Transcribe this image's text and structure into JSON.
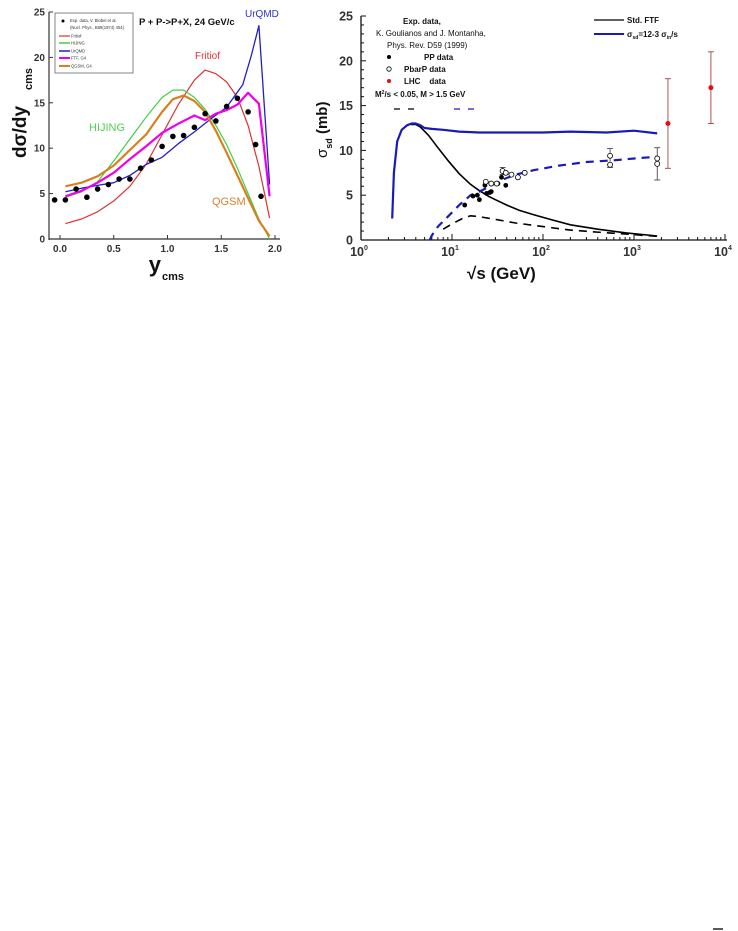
{
  "chart_data": [
    {
      "type": "line",
      "title": "P + P->P+X, 24 GeV/c",
      "xlabel": "y",
      "xlabel_sub": "cms",
      "ylabel": "dσ/dy",
      "ylabel_sub": "cms",
      "xlim": [
        -0.1,
        2.0
      ],
      "ylim": [
        0,
        25
      ],
      "xticks": [
        0.0,
        0.5,
        1.0,
        1.5,
        2.0
      ],
      "xtick_labels": [
        "0.0",
        "0.5",
        "1.0",
        "1.5",
        "2.0"
      ],
      "yticks": [
        0,
        5,
        10,
        15,
        20,
        25
      ],
      "ytick_labels": [
        "0",
        "5",
        "10",
        "15",
        "20",
        "25"
      ],
      "legend_position": "top-left",
      "legend": [
        "Exp. data, V. Blobel et al.",
        "(Nucl. Phys., B69(1974) 454)",
        "Fritiof",
        "HIJING",
        "UrQMD",
        "FTF, G4",
        "QGSM, G4"
      ],
      "annotations": [
        "Fritiof",
        "HIJING",
        "UrQMD",
        "QGSM"
      ],
      "colors": {
        "Fritiof": "#e03030",
        "HIJING": "#40d040",
        "UrQMD": "#2020c8",
        "FTF, G4": "#ee00ee",
        "QGSM, G4": "#d88020",
        "data": "#000000"
      },
      "scatter": {
        "name": "Exp. data",
        "x": [
          -0.05,
          0.05,
          0.15,
          0.25,
          0.35,
          0.45,
          0.55,
          0.65,
          0.75,
          0.85,
          0.95,
          1.05,
          1.15,
          1.25,
          1.35,
          1.45,
          1.55,
          1.65,
          1.75,
          1.82,
          1.87
        ],
        "y": [
          4.3,
          4.3,
          5.5,
          4.6,
          5.5,
          6.0,
          6.6,
          6.6,
          7.8,
          8.7,
          10.2,
          11.3,
          11.4,
          12.3,
          13.8,
          13.0,
          14.6,
          15.5,
          14.0,
          10.4,
          4.7
        ]
      },
      "series": [
        {
          "name": "Fritiof",
          "x": [
            0.05,
            0.2,
            0.35,
            0.5,
            0.65,
            0.8,
            0.95,
            1.1,
            1.25,
            1.35,
            1.45,
            1.55,
            1.65,
            1.75,
            1.85,
            1.95
          ],
          "y": [
            1.7,
            2.2,
            3.0,
            4.2,
            5.8,
            8.2,
            11.5,
            14.8,
            17.5,
            18.6,
            18.2,
            17.3,
            15.6,
            12.5,
            8.0,
            2.3
          ]
        },
        {
          "name": "HIJING",
          "x": [
            0.05,
            0.2,
            0.35,
            0.5,
            0.65,
            0.8,
            0.95,
            1.05,
            1.15,
            1.25,
            1.35,
            1.45,
            1.55,
            1.65,
            1.75,
            1.85,
            1.95
          ],
          "y": [
            4.6,
            5.2,
            6.3,
            8.6,
            11.0,
            13.4,
            15.6,
            16.4,
            16.4,
            15.6,
            14.3,
            12.5,
            10.4,
            7.8,
            5.0,
            2.2,
            0.0
          ]
        },
        {
          "name": "UrQMD",
          "x": [
            0.05,
            0.2,
            0.35,
            0.5,
            0.65,
            0.8,
            0.95,
            1.1,
            1.25,
            1.4,
            1.55,
            1.7,
            1.78,
            1.85,
            1.95
          ],
          "y": [
            5.2,
            5.6,
            5.9,
            6.2,
            7.0,
            8.2,
            9.0,
            10.5,
            11.8,
            13.2,
            14.5,
            17.0,
            20.2,
            23.5,
            6.0
          ]
        },
        {
          "name": "FTF, G4",
          "x": [
            0.05,
            0.2,
            0.35,
            0.5,
            0.65,
            0.8,
            0.95,
            1.1,
            1.25,
            1.35,
            1.45,
            1.55,
            1.65,
            1.75,
            1.85,
            1.95
          ],
          "y": [
            4.7,
            5.3,
            6.2,
            7.3,
            8.8,
            10.2,
            11.7,
            12.7,
            13.6,
            13.1,
            13.8,
            14.2,
            14.8,
            16.1,
            14.9,
            4.7
          ]
        },
        {
          "name": "QGSM, G4",
          "x": [
            0.05,
            0.2,
            0.35,
            0.5,
            0.65,
            0.8,
            0.95,
            1.05,
            1.15,
            1.25,
            1.35,
            1.45,
            1.55,
            1.65,
            1.75,
            1.85,
            1.95
          ],
          "y": [
            5.8,
            6.2,
            6.9,
            8.1,
            9.8,
            11.5,
            14.0,
            15.4,
            15.8,
            15.2,
            14.0,
            11.9,
            9.5,
            7.0,
            4.5,
            2.0,
            0.3
          ]
        }
      ]
    },
    {
      "type": "line",
      "xscale": "log",
      "xlabel": "√s (GeV)",
      "ylabel": "σ",
      "ylabel_sub": "sd",
      "ylabel_unit": " (mb)",
      "xlim": [
        1,
        10000
      ],
      "ylim": [
        0,
        25
      ],
      "xticks": [
        1,
        10,
        100,
        1000,
        10000
      ],
      "xtick_labels": [
        [
          "10",
          "0"
        ],
        [
          "10",
          "1"
        ],
        [
          "10",
          "2"
        ],
        [
          "10",
          "3"
        ],
        [
          "10",
          "4"
        ]
      ],
      "yticks": [
        0,
        5,
        10,
        15,
        20,
        25
      ],
      "ytick_labels": [
        "0",
        "5",
        "10",
        "15",
        "20",
        "25"
      ],
      "legend_position": "top-right",
      "legend_lines": [
        {
          "label": "Std. FTF",
          "color": "#000000"
        },
        {
          "label_main": "σ",
          "label_sub": "sd",
          "label_mid": "=12-3 σ",
          "label_sub2": "in",
          "label_end": "/s",
          "color": "#1a1ab4"
        }
      ],
      "data_legend": {
        "heading": "Exp. data,",
        "ref1": "K. Goulianos and J. Montanha,",
        "ref2": "Phys. Rev. D59 (1999)",
        "items": [
          {
            "label": "PP data",
            "marker": "filled-black"
          },
          {
            "label": "PbarP data",
            "marker": "open-circle"
          },
          {
            "label": "LHC    data",
            "marker": "filled-red"
          }
        ],
        "cut_main": "M",
        "cut_sup": "2",
        "cut_rest": "/s < 0.05, M > 1.5 GeV"
      },
      "colors": {
        "std": "#000000",
        "blue": "#1a1ab4",
        "lhc": "#e01010",
        "lhc_err": "#a04040"
      },
      "series": [
        {
          "name": "Std. FTF",
          "style": "solid",
          "color": "#000000",
          "x": [
            3.5,
            4.0,
            4.5,
            5.5,
            7,
            9,
            12,
            16,
            20,
            25,
            30,
            40,
            55,
            80,
            120,
            200,
            400,
            800,
            1800
          ],
          "y": [
            12.9,
            12.9,
            12.6,
            11.7,
            10.3,
            8.9,
            7.4,
            6.2,
            5.5,
            4.9,
            4.5,
            3.9,
            3.3,
            2.8,
            2.3,
            1.7,
            1.2,
            0.8,
            0.45
          ]
        },
        {
          "name": "sigma_sd=12-3 sigma_in/s",
          "style": "solid",
          "color": "#1a1ab4",
          "x": [
            2.2,
            2.3,
            2.5,
            2.8,
            3.2,
            3.6,
            4.0,
            4.5,
            5.0,
            6.0,
            8,
            12,
            20,
            40,
            100,
            200,
            500,
            1000,
            1800
          ],
          "y": [
            2.4,
            7.5,
            11.0,
            12.3,
            12.8,
            13.0,
            13.0,
            12.8,
            12.5,
            12.4,
            12.3,
            12.1,
            12.0,
            12.0,
            12.0,
            12.1,
            12.0,
            12.2,
            11.9
          ]
        },
        {
          "name": "Std. FTF (M cut)",
          "style": "dashed",
          "color": "#000000",
          "x": [
            8,
            10,
            13,
            16,
            20,
            30,
            50,
            100,
            200,
            500,
            1000,
            1800
          ],
          "y": [
            1.2,
            1.8,
            2.4,
            2.7,
            2.6,
            2.3,
            1.9,
            1.5,
            1.1,
            0.8,
            0.6,
            0.4
          ]
        },
        {
          "name": "sigma_sd (M cut)",
          "style": "dashed",
          "color": "#1a1ab4",
          "x": [
            5.7,
            6,
            7,
            9,
            12,
            16,
            20,
            25,
            35,
            50,
            80,
            150,
            300,
            600,
            1000,
            1800
          ],
          "y": [
            0.0,
            0.5,
            1.5,
            2.6,
            3.9,
            5.0,
            5.4,
            5.9,
            6.7,
            7.3,
            7.8,
            8.3,
            8.7,
            8.9,
            9.1,
            9.3
          ]
        }
      ],
      "scatter": [
        {
          "name": "PP data",
          "marker": "filled-black",
          "x": [
            13.8,
            17,
            19,
            20,
            23,
            24,
            26,
            27,
            32,
            35,
            39
          ],
          "y": [
            3.9,
            4.9,
            5.0,
            4.5,
            6.1,
            5.2,
            5.3,
            5.4,
            6.3,
            7.0,
            6.1
          ]
        },
        {
          "name": "PbarP data",
          "marker": "open-circle",
          "x": [
            23.5,
            27,
            31,
            36,
            39,
            45,
            53,
            63,
            546,
            546,
            1800,
            1800
          ],
          "y": [
            6.5,
            6.3,
            6.3,
            7.7,
            7.5,
            7.3,
            7.0,
            7.5,
            9.4,
            8.4,
            9.1,
            8.5
          ],
          "yerr_marks": [
            {
              "x": 546,
              "lo": 8.1,
              "hi": 10.2
            },
            {
              "x": 1800,
              "lo": 6.7,
              "hi": 10.3
            },
            {
              "x": 36,
              "lo": 7.3,
              "hi": 8.1
            }
          ]
        },
        {
          "name": "LHC data",
          "marker": "filled-red",
          "x": [
            2360,
            7000
          ],
          "y": [
            13.0,
            17.0
          ],
          "yerr_lo": [
            8.0,
            13.0
          ],
          "yerr_hi": [
            18.0,
            21.0
          ]
        }
      ]
    }
  ]
}
